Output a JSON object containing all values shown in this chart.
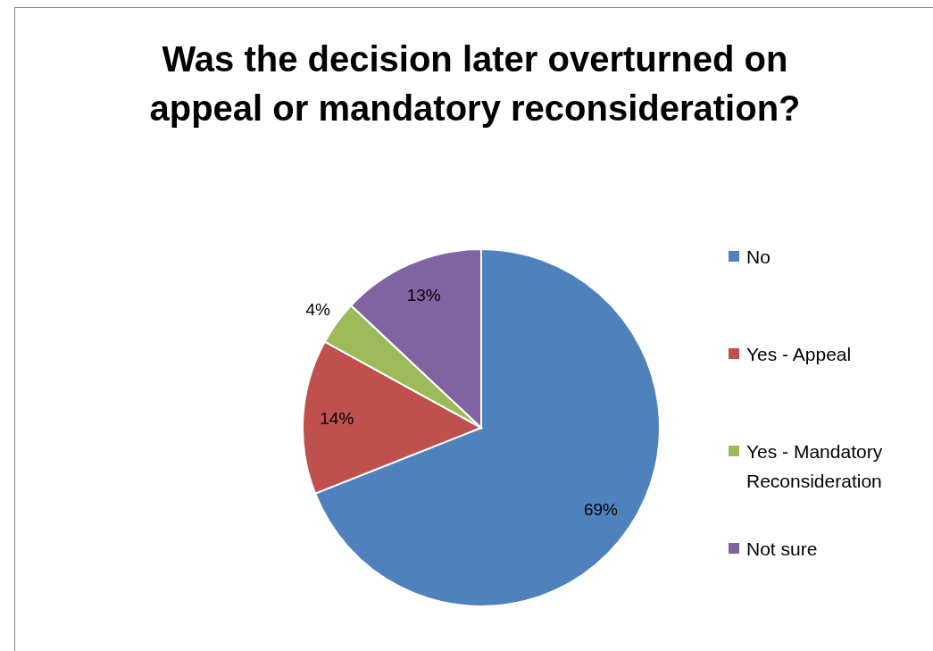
{
  "chart_data": {
    "type": "pie",
    "title": "Was the decision later overturned on appeal or mandatory reconsideration?",
    "categories": [
      "No",
      "Yes - Appeal",
      "Yes - Mandatory Reconsideration",
      "Not sure"
    ],
    "values": [
      69,
      14,
      4,
      13
    ],
    "colors": [
      "#4f81bd",
      "#c0504d",
      "#9bbb59",
      "#8064a2"
    ],
    "value_labels": [
      "69%",
      "14%",
      "4%",
      "13%"
    ],
    "legend": "right"
  }
}
